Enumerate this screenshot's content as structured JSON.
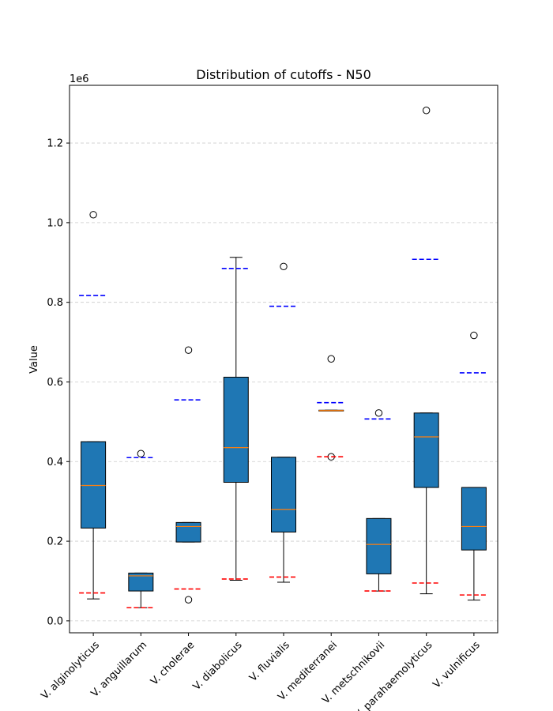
{
  "chart_data": {
    "type": "box",
    "title": "Distribution of cutoffs - N50",
    "xlabel": "",
    "ylabel": "Value",
    "y_scale_label": "1e6",
    "y_scale": 1000000,
    "ylim": [
      -30000,
      1345000
    ],
    "yticks": [
      0.0,
      0.2,
      0.4,
      0.6,
      0.8,
      1.0,
      1.2
    ],
    "ytick_labels": [
      "0.0",
      "0.2",
      "0.4",
      "0.6",
      "0.8",
      "1.0",
      "1.2"
    ],
    "grid": "y, dashed",
    "colors": {
      "box": "#1f77b4",
      "median": "#ff7f0e",
      "upper_line": "#0000ff",
      "lower_line": "#ff0000"
    },
    "categories": [
      "V. alginolyticus",
      "V. anguillarum",
      "V. cholerae",
      "V. diabolicus",
      "V. fluvialis",
      "V. mediterranei",
      "V. metschnikovii",
      "V. parahaemolyticus",
      "V. vulnificus"
    ],
    "boxes": [
      {
        "whisker_low": 55000,
        "q1": 233000,
        "median": 340000,
        "q3": 450000,
        "whisker_high": 450000,
        "outliers": [
          1020000
        ],
        "lower_line": 70000,
        "upper_line": 817000
      },
      {
        "whisker_low": 33000,
        "q1": 75000,
        "median": 113000,
        "q3": 120000,
        "whisker_high": 120000,
        "outliers": [
          420000
        ],
        "lower_line": 33000,
        "upper_line": 410000
      },
      {
        "whisker_low": 198000,
        "q1": 198000,
        "median": 237000,
        "q3": 247000,
        "whisker_high": 247000,
        "outliers": [
          680000,
          53000
        ],
        "lower_line": 80000,
        "upper_line": 555000
      },
      {
        "whisker_low": 102000,
        "q1": 348000,
        "median": 435000,
        "q3": 612000,
        "whisker_high": 913000,
        "outliers": [],
        "lower_line": 105000,
        "upper_line": 885000
      },
      {
        "whisker_low": 97000,
        "q1": 223000,
        "median": 280000,
        "q3": 411000,
        "whisker_high": 411000,
        "outliers": [
          890000
        ],
        "lower_line": 110000,
        "upper_line": 790000
      },
      {
        "whisker_low": 528000,
        "q1": 528000,
        "median": 528000,
        "q3": 529000,
        "whisker_high": 529000,
        "outliers": [
          658000,
          412000
        ],
        "lower_line": 412000,
        "upper_line": 548000
      },
      {
        "whisker_low": 75000,
        "q1": 118000,
        "median": 192000,
        "q3": 257000,
        "whisker_high": 257000,
        "outliers": [
          522000
        ],
        "lower_line": 75000,
        "upper_line": 507000
      },
      {
        "whisker_low": 68000,
        "q1": 335000,
        "median": 462000,
        "q3": 522000,
        "whisker_high": 522000,
        "outliers": [
          1282000
        ],
        "lower_line": 95000,
        "upper_line": 908000
      },
      {
        "whisker_low": 52000,
        "q1": 178000,
        "median": 237000,
        "q3": 335000,
        "whisker_high": 335000,
        "outliers": [
          717000
        ],
        "lower_line": 65000,
        "upper_line": 623000
      }
    ]
  }
}
